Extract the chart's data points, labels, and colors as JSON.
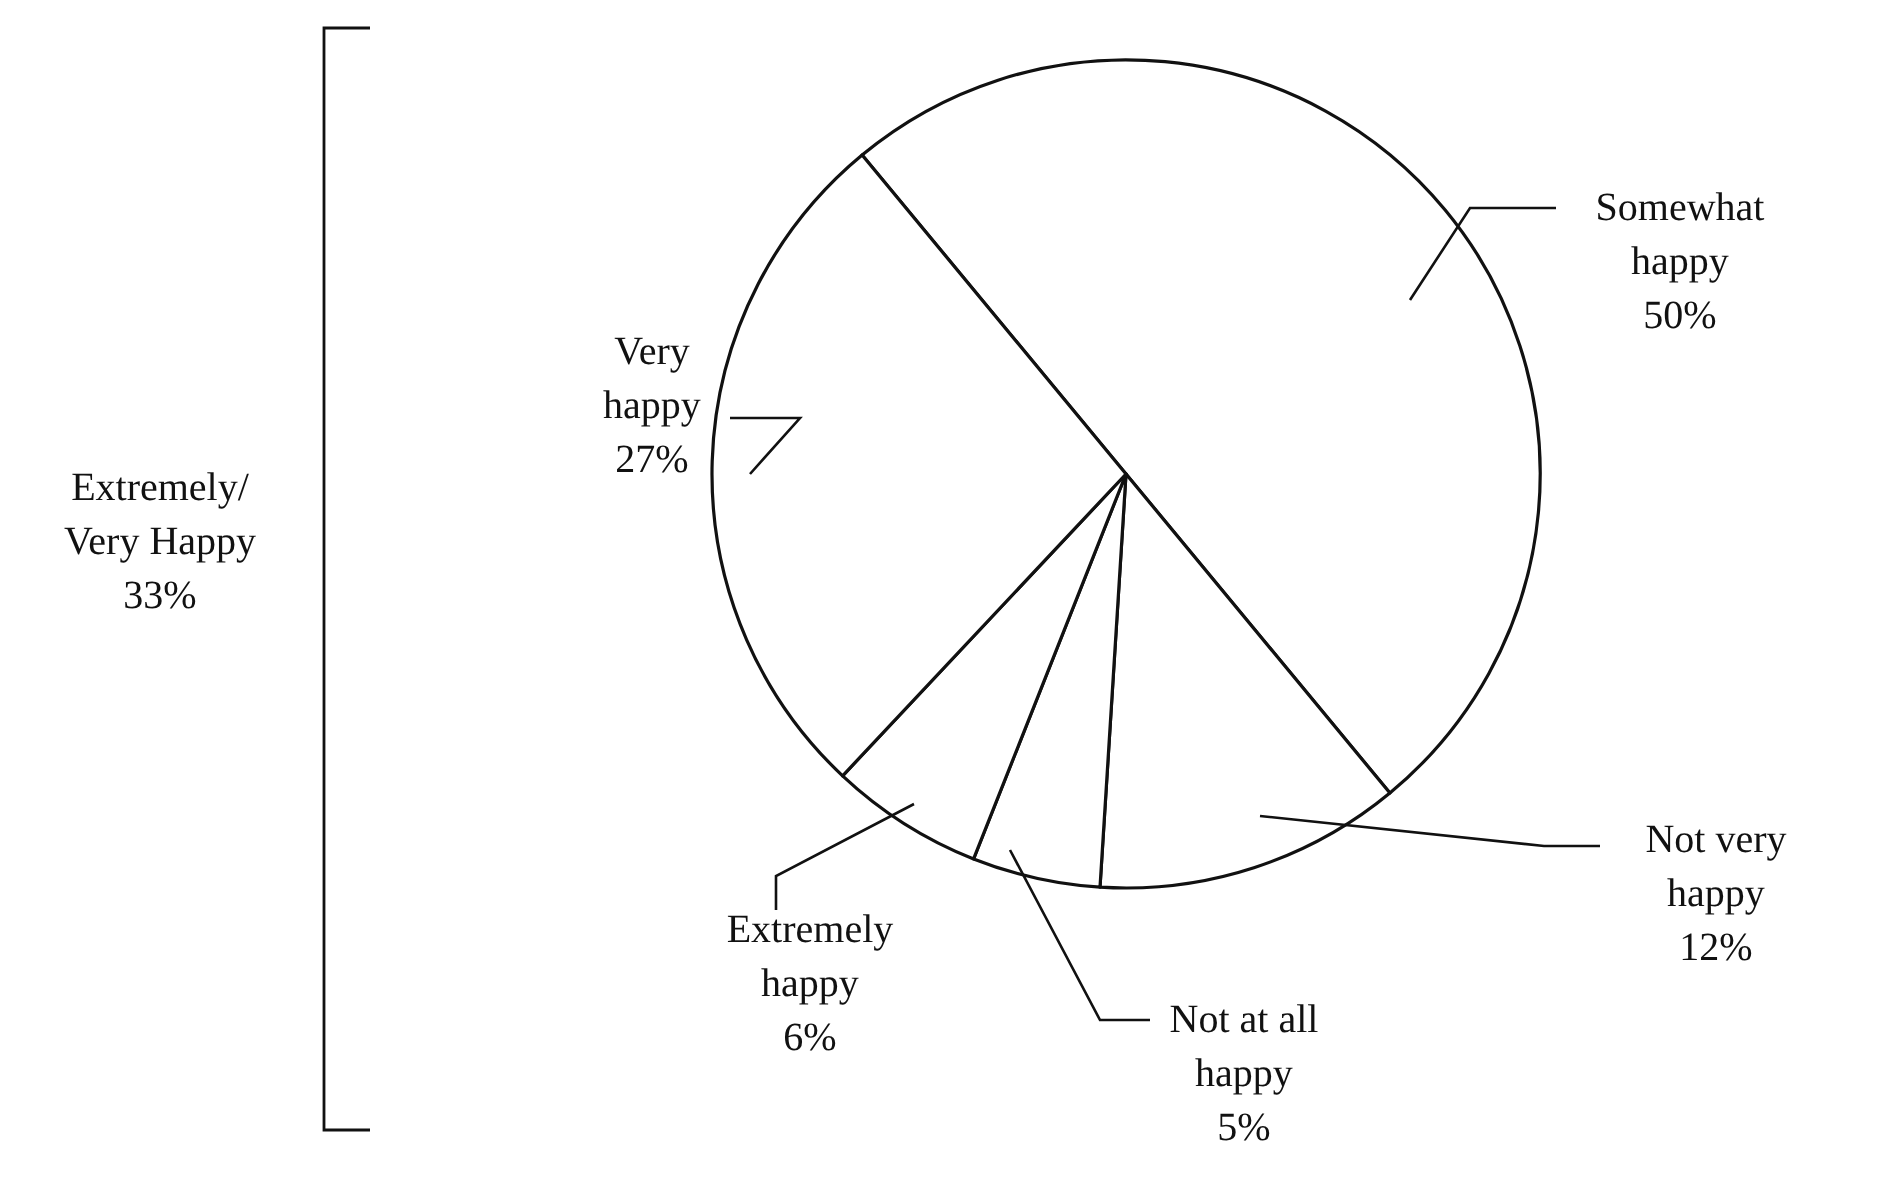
{
  "chart_data": {
    "type": "pie",
    "categories": [
      "Somewhat\nhappy",
      "Not very\nhappy",
      "Not at all\nhappy",
      "Extremely\nhappy",
      "Very\nhappy"
    ],
    "values": [
      50,
      12,
      5,
      6,
      27
    ],
    "value_labels": [
      "50%",
      "12%",
      "5%",
      "6%",
      "27%"
    ],
    "colors": [
      "#ffffff",
      "#ffffff",
      "#ffffff",
      "#ffffff",
      "#ffffff"
    ],
    "annotations": [
      "Extremely/\nVery Happy\n33%"
    ]
  }
}
